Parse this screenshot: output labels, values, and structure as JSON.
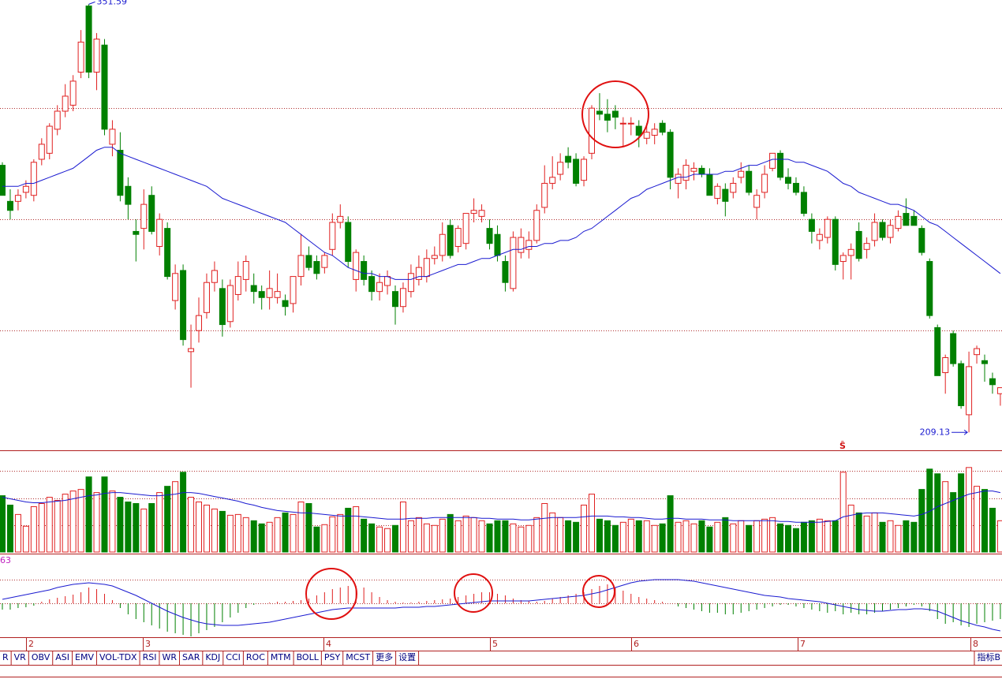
{
  "chart_data": [
    {
      "type": "candlestick",
      "marker": "Ŝ",
      "ylim": [
        205,
        353
      ],
      "open": [
        298,
        286,
        286,
        289,
        288,
        300,
        302,
        310,
        316,
        318,
        329,
        351,
        329,
        338,
        305,
        303,
        291,
        276,
        277,
        288,
        271,
        277,
        253,
        263,
        236,
        243,
        249,
        259,
        257,
        246,
        255,
        260,
        258,
        256,
        254,
        254,
        253,
        252,
        261,
        268,
        266,
        264,
        270,
        279,
        279,
        260,
        266,
        261,
        256,
        258,
        256,
        251,
        256,
        260,
        261,
        267,
        268,
        278,
        271,
        272,
        282,
        281,
        277,
        275,
        266,
        257,
        269,
        270,
        273,
        284,
        292,
        295,
        301,
        300,
        293,
        302,
        316,
        315,
        316,
        312,
        312,
        311,
        307,
        308,
        312,
        309,
        292,
        293,
        296,
        297,
        295,
        287,
        290,
        289,
        294,
        296,
        284,
        289,
        297,
        302,
        294,
        292,
        289,
        280,
        273,
        274,
        280,
        266,
        268,
        276,
        270,
        273,
        279,
        274,
        277,
        282,
        281,
        277,
        266,
        244,
        229,
        242,
        232,
        215,
        235,
        233,
        227,
        222
      ],
      "high": [
        299,
        290,
        290,
        293,
        300,
        307,
        312,
        318,
        325,
        328,
        343,
        351.59,
        342,
        340,
        313,
        309,
        294,
        280,
        290,
        291,
        282,
        279,
        265,
        265,
        245,
        254,
        262,
        266,
        260,
        260,
        266,
        268,
        262,
        258,
        263,
        262,
        255,
        261,
        275,
        271,
        268,
        269,
        282,
        285,
        281,
        270,
        268,
        263,
        262,
        263,
        258,
        259,
        265,
        268,
        270,
        271,
        279,
        280,
        278,
        282,
        287,
        285,
        280,
        278,
        268,
        276,
        277,
        276,
        285,
        298,
        301,
        302,
        304,
        302,
        301,
        318,
        322,
        320,
        318,
        314,
        314,
        313,
        312,
        312,
        313,
        310,
        297,
        300,
        299,
        298,
        297,
        292,
        292,
        294,
        299,
        298,
        290,
        298,
        302,
        303,
        297,
        294,
        291,
        282,
        277,
        281,
        281,
        269,
        272,
        279,
        274,
        282,
        280,
        280,
        283,
        287,
        283,
        278,
        267,
        245,
        235,
        243,
        233,
        236,
        238,
        235,
        229,
        224
      ],
      "low": [
        288,
        280,
        283,
        287,
        286,
        298,
        300,
        308,
        314,
        316,
        327,
        327,
        323,
        308,
        301,
        286,
        280,
        266,
        270,
        275,
        268,
        260,
        250,
        238,
        224,
        239,
        247,
        256,
        241,
        244,
        253,
        256,
        252,
        250,
        250,
        252,
        248,
        249,
        258,
        263,
        260,
        262,
        268,
        277,
        264,
        256,
        258,
        253,
        253,
        255,
        245,
        249,
        254,
        258,
        259,
        265,
        266,
        267,
        269,
        270,
        279,
        279,
        270,
        266,
        256,
        256,
        267,
        267,
        272,
        282,
        290,
        293,
        297,
        291,
        291,
        300,
        313,
        309,
        310,
        304,
        308,
        304,
        305,
        305,
        308,
        290,
        287,
        290,
        293,
        294,
        288,
        285,
        281,
        287,
        292,
        288,
        280,
        287,
        296,
        293,
        290,
        288,
        281,
        272,
        270,
        272,
        263,
        260,
        260,
        266,
        267,
        271,
        273,
        272,
        276,
        278,
        278,
        268,
        247,
        228,
        222,
        231,
        217,
        209.13,
        232,
        226,
        222,
        218
      ],
      "close": [
        288,
        283,
        288,
        291,
        299,
        305,
        311,
        316,
        321,
        326,
        339,
        329,
        340,
        310,
        310,
        288,
        285,
        275,
        285,
        276,
        280,
        261,
        262,
        240,
        237,
        248,
        259,
        263,
        245,
        258,
        261,
        266,
        256,
        254,
        257,
        256,
        251,
        261,
        268,
        264,
        262,
        268,
        279,
        281,
        266,
        269,
        260,
        256,
        259,
        261,
        251,
        257,
        262,
        264,
        267,
        268,
        275,
        268,
        277,
        282,
        283,
        283,
        272,
        268,
        259,
        274,
        274,
        273,
        283,
        292,
        294,
        299,
        299,
        292,
        300,
        317,
        315,
        313,
        314,
        312,
        312,
        308,
        309,
        310,
        309,
        294,
        295,
        298,
        297,
        295,
        288,
        291,
        286,
        292,
        296,
        289,
        288,
        295,
        302,
        294,
        292,
        289,
        282,
        276,
        275,
        280,
        265,
        268,
        270,
        267,
        272,
        279,
        274,
        278,
        281,
        278,
        278,
        269,
        248,
        228,
        234,
        232,
        218,
        231,
        237,
        232,
        225,
        224
      ],
      "ma": [
        291,
        291,
        291,
        292,
        292,
        293,
        294,
        295,
        296,
        297,
        299,
        301,
        303,
        304,
        304,
        302,
        301,
        300,
        299,
        298,
        297,
        296,
        295,
        294,
        293,
        292,
        291,
        289,
        287,
        286,
        285,
        284,
        283,
        282,
        281,
        280,
        279,
        277,
        275,
        273,
        271,
        269,
        268,
        266,
        264,
        263,
        262,
        262,
        261,
        261,
        260,
        260,
        260,
        261,
        261,
        262,
        263,
        264,
        265,
        265,
        266,
        267,
        267,
        268,
        269,
        270,
        270,
        271,
        271,
        272,
        272,
        273,
        273,
        274,
        276,
        277,
        279,
        281,
        283,
        285,
        287,
        288,
        290,
        291,
        292,
        293,
        294,
        294,
        295,
        295,
        295,
        295,
        296,
        296,
        297,
        298,
        298,
        299,
        300,
        300,
        300,
        299,
        299,
        298,
        297,
        296,
        294,
        292,
        291,
        289,
        288,
        287,
        286,
        285,
        285,
        284,
        283,
        281,
        279,
        278,
        276,
        274,
        272,
        270,
        268,
        266,
        264,
        262
      ]
    },
    {
      "type": "bar",
      "ylim": [
        0,
        128
      ],
      "values": [
        72,
        60,
        48,
        33,
        58,
        62,
        70,
        66,
        74,
        78,
        80,
        96,
        76,
        96,
        78,
        70,
        64,
        62,
        55,
        62,
        76,
        84,
        90,
        102,
        70,
        64,
        60,
        55,
        52,
        47,
        48,
        44,
        40,
        36,
        38,
        44,
        50,
        48,
        64,
        62,
        32,
        35,
        45,
        48,
        56,
        58,
        42,
        36,
        32,
        30,
        34,
        64,
        40,
        44,
        36,
        34,
        42,
        48,
        40,
        46,
        44,
        40,
        36,
        40,
        40,
        36,
        32,
        34,
        44,
        62,
        50,
        44,
        40,
        38,
        60,
        74,
        42,
        40,
        34,
        38,
        42,
        40,
        40,
        34,
        36,
        72,
        38,
        40,
        36,
        40,
        32,
        38,
        44,
        36,
        40,
        34,
        40,
        42,
        44,
        36,
        34,
        30,
        38,
        40,
        42,
        40,
        40,
        102,
        60,
        50,
        46,
        50,
        38,
        40,
        34,
        40,
        38,
        80,
        106,
        100,
        90,
        76,
        100,
        108,
        84,
        80,
        56,
        40
      ],
      "ma": [
        70,
        68,
        66,
        64,
        63,
        63,
        64,
        65,
        66,
        68,
        70,
        72,
        73,
        75,
        76,
        76,
        75,
        74,
        73,
        72,
        72,
        73,
        74,
        76,
        76,
        75,
        73,
        71,
        69,
        67,
        65,
        62,
        60,
        57,
        55,
        53,
        52,
        51,
        50,
        50,
        49,
        48,
        47,
        46,
        46,
        46,
        45,
        44,
        43,
        42,
        42,
        42,
        43,
        43,
        43,
        44,
        44,
        44,
        44,
        44,
        44,
        43,
        43,
        42,
        42,
        42,
        41,
        41,
        42,
        43,
        44,
        44,
        44,
        44,
        45,
        46,
        46,
        46,
        45,
        45,
        44,
        44,
        43,
        42,
        42,
        43,
        43,
        42,
        42,
        42,
        41,
        41,
        41,
        40,
        40,
        40,
        40,
        40,
        40,
        39,
        39,
        38,
        38,
        38,
        38,
        39,
        40,
        45,
        47,
        49,
        50,
        50,
        50,
        49,
        48,
        47,
        46,
        48,
        52,
        58,
        62,
        66,
        70,
        74,
        76,
        78,
        78,
        76
      ]
    },
    {
      "type": "macd",
      "label": "63",
      "ylim": [
        -45,
        45
      ],
      "hist": [
        -8,
        -8,
        -6,
        -5,
        -3,
        2,
        5,
        7,
        9,
        11,
        14,
        20,
        18,
        12,
        4,
        -6,
        -14,
        -20,
        -24,
        -28,
        -32,
        -36,
        -38,
        -40,
        -42,
        -38,
        -34,
        -30,
        -24,
        -18,
        -12,
        -6,
        -2,
        0,
        1,
        2,
        2,
        3,
        4,
        6,
        10,
        14,
        18,
        20,
        22,
        22,
        20,
        14,
        8,
        4,
        2,
        1,
        1,
        2,
        3,
        4,
        5,
        6,
        8,
        10,
        12,
        14,
        14,
        12,
        10,
        6,
        4,
        3,
        2,
        3,
        6,
        8,
        10,
        12,
        14,
        18,
        22,
        24,
        20,
        16,
        12,
        8,
        6,
        4,
        2,
        0,
        -4,
        -6,
        -8,
        -10,
        -12,
        -12,
        -14,
        -14,
        -12,
        -10,
        -8,
        -6,
        -4,
        -2,
        -2,
        -4,
        -6,
        -8,
        -10,
        -12,
        -10,
        -14,
        -12,
        -14,
        -14,
        -12,
        -10,
        -8,
        -6,
        -4,
        -2,
        -4,
        -10,
        -20,
        -26,
        -24,
        -28,
        -30,
        -26,
        -24,
        -22,
        -20
      ],
      "dif": [
        5,
        7,
        9,
        11,
        13,
        15,
        17,
        20,
        22,
        24,
        25,
        26,
        25,
        24,
        22,
        18,
        14,
        10,
        5,
        0,
        -5,
        -10,
        -14,
        -18,
        -21,
        -24,
        -26,
        -27,
        -28,
        -28,
        -28,
        -27,
        -26,
        -25,
        -24,
        -22,
        -20,
        -18,
        -16,
        -14,
        -12,
        -10,
        -8,
        -7,
        -6,
        -6,
        -6,
        -6,
        -6,
        -6,
        -6,
        -5,
        -5,
        -5,
        -4,
        -4,
        -3,
        -2,
        -1,
        0,
        1,
        2,
        3,
        3,
        3,
        3,
        3,
        3,
        4,
        5,
        6,
        7,
        8,
        9,
        10,
        12,
        14,
        17,
        20,
        23,
        26,
        28,
        29,
        30,
        30,
        30,
        30,
        29,
        28,
        26,
        24,
        22,
        20,
        18,
        16,
        14,
        12,
        10,
        9,
        8,
        6,
        5,
        4,
        3,
        2,
        0,
        -2,
        -4,
        -6,
        -8,
        -9,
        -10,
        -10,
        -9,
        -8,
        -8,
        -7,
        -7,
        -8,
        -10,
        -14,
        -18,
        -22,
        -25,
        -28,
        -30,
        -33,
        -35
      ]
    }
  ],
  "months": [
    "2",
    "3",
    "4",
    "5",
    "6",
    "7",
    "8"
  ],
  "toolbar": [
    "R",
    "VR",
    "OBV",
    "ASI",
    "EMV",
    "VOL-TDX",
    "RSI",
    "WR",
    "SAR",
    "KDJ",
    "CCI",
    "ROC",
    "MTM",
    "BOLL",
    "PSY",
    "MCST",
    "更多",
    "设置"
  ],
  "toolbar_right": "指标B"
}
